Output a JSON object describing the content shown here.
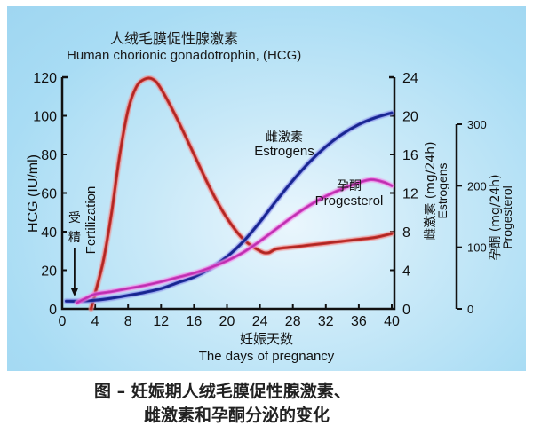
{
  "chart_data": {
    "type": "line",
    "title": "人绒毛膜促性腺激素 Human chorionic gonadotrophin, (HCG)",
    "title_cn": "人绒毛膜促性腺激素",
    "title_en": "Human chorionic gonadotrophin, (HCG)",
    "xlabel_cn": "妊娠天数",
    "xlabel_en": "The days of pregnancy",
    "xlim": [
      0,
      40
    ],
    "xticks": [
      0,
      4,
      8,
      12,
      16,
      20,
      24,
      28,
      32,
      36,
      40
    ],
    "axes": {
      "left": {
        "label": "HCG (IU/ml)",
        "ylim": [
          0,
          120
        ],
        "ticks": [
          0,
          20,
          40,
          60,
          80,
          100,
          120
        ]
      },
      "right1": {
        "label_cn": "雌激素",
        "label": "(mg/24h) Estrogens",
        "ylim": [
          0,
          24
        ],
        "ticks": [
          0,
          4,
          8,
          12,
          16,
          20,
          24
        ]
      },
      "right2": {
        "label_cn": "孕酮",
        "label": "(mg/24h) Progesterol",
        "ylim": [
          0,
          300
        ],
        "ticks": [
          0,
          100,
          200,
          300
        ]
      }
    },
    "annotations": [
      {
        "text_cn": "受精",
        "text_en": "Fertilization",
        "x": 1.5,
        "arrow": "down"
      },
      {
        "text_cn": "雌激素",
        "text_en": "Estrogens",
        "x": 24,
        "y_estrogen": 16
      },
      {
        "text_cn": "孕酮",
        "text_en": "Progesterol",
        "x": 30,
        "y_estrogen": 12
      }
    ],
    "series": [
      {
        "name": "HCG",
        "axis": "left",
        "color": "#c8322e",
        "x": [
          3.5,
          4,
          5,
          6,
          7,
          8,
          9,
          10,
          11,
          12,
          14,
          16,
          18,
          20,
          22,
          24,
          25,
          26,
          28,
          30,
          32,
          34,
          36,
          38,
          40
        ],
        "values": [
          0,
          8,
          25,
          50,
          80,
          103,
          115,
          119,
          119,
          114,
          98,
          80,
          62,
          47,
          36,
          30,
          29,
          31,
          32,
          33,
          34,
          35,
          36,
          37,
          39
        ]
      },
      {
        "name": "Estrogens",
        "axis": "right1",
        "color": "#1f2ea0",
        "x": [
          0.5,
          2,
          4,
          6,
          8,
          10,
          12,
          14,
          16,
          18,
          20,
          22,
          24,
          26,
          28,
          30,
          32,
          34,
          36,
          38,
          40
        ],
        "values": [
          0.8,
          0.8,
          0.9,
          1.1,
          1.4,
          1.7,
          2.1,
          2.7,
          3.3,
          4.2,
          5.4,
          7.0,
          9.0,
          11.2,
          13.3,
          15.2,
          16.8,
          18.1,
          19.1,
          19.8,
          20.3
        ]
      },
      {
        "name": "Progesterol",
        "axis": "right2",
        "color": "#d23fc4",
        "x": [
          1.8,
          3,
          4,
          6,
          8,
          10,
          12,
          14,
          16,
          18,
          20,
          22,
          24,
          26,
          28,
          30,
          32,
          34,
          36,
          37.5,
          39,
          40
        ],
        "values": [
          10,
          18,
          24,
          28,
          33,
          38,
          44,
          51,
          58,
          67,
          78,
          92,
          110,
          130,
          150,
          168,
          183,
          195,
          205,
          210,
          206,
          200
        ]
      }
    ]
  },
  "caption": {
    "line1": "图  –  妊娠期人绒毛膜促性腺激素、",
    "line2": "雌激素和孕酮分泌的变化"
  }
}
